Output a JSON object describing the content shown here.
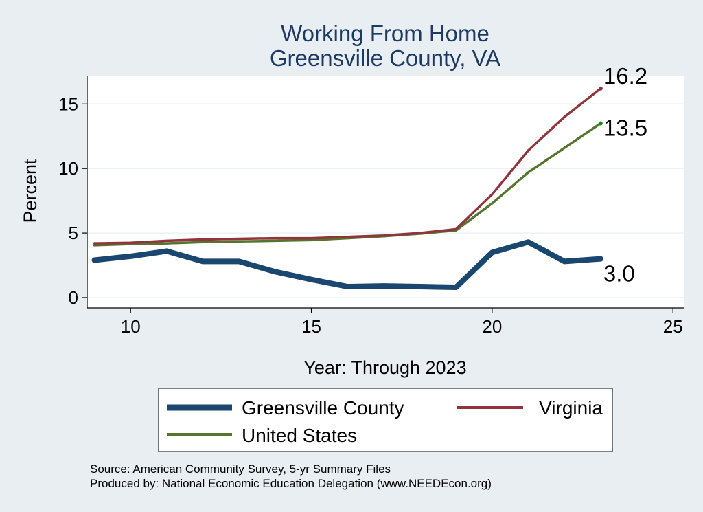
{
  "chart_data": {
    "type": "line",
    "title": "Working From Home",
    "subtitle": "Greensville County, VA",
    "xlabel": "Year: Through 2023",
    "ylabel": "Percent",
    "xlim": [
      8.8,
      25.3
    ],
    "ylim": [
      -0.8,
      17.2
    ],
    "xticks": [
      "10",
      "15",
      "20",
      "25"
    ],
    "yticks": [
      "0",
      "5",
      "10",
      "15"
    ],
    "grid": true,
    "legend_position": "bottom",
    "series": [
      {
        "name": "Greensville County",
        "color": "#1a476f",
        "x": [
          9,
          10,
          11,
          12,
          13,
          14,
          15,
          16,
          17,
          18,
          19,
          20,
          21,
          22,
          23
        ],
        "values": [
          2.9,
          3.2,
          3.6,
          2.8,
          2.8,
          2.0,
          1.4,
          0.85,
          0.9,
          0.85,
          0.8,
          3.5,
          4.3,
          2.8,
          3.0
        ],
        "end_label": "3.0"
      },
      {
        "name": "Virginia",
        "color": "#90353b",
        "x": [
          9,
          10,
          11,
          12,
          13,
          14,
          15,
          16,
          17,
          18,
          19,
          20,
          21,
          22,
          23
        ],
        "values": [
          4.2,
          4.25,
          4.4,
          4.5,
          4.55,
          4.6,
          4.6,
          4.7,
          4.8,
          5.0,
          5.3,
          8.0,
          11.4,
          14.0,
          16.2
        ],
        "end_label": "16.2"
      },
      {
        "name": "United States",
        "color": "#55752f",
        "x": [
          9,
          10,
          11,
          12,
          13,
          14,
          15,
          16,
          17,
          18,
          19,
          20,
          21,
          22,
          23
        ],
        "values": [
          4.05,
          4.15,
          4.2,
          4.3,
          4.35,
          4.4,
          4.45,
          4.6,
          4.75,
          4.95,
          5.2,
          7.3,
          9.7,
          11.6,
          13.5
        ],
        "end_label": "13.5"
      }
    ]
  },
  "notes": {
    "source": "Source: American Community Survey, 5-yr Summary Files",
    "produced": "Produced by: National Economic Education Delegation (www.NEEDEcon.org)"
  }
}
